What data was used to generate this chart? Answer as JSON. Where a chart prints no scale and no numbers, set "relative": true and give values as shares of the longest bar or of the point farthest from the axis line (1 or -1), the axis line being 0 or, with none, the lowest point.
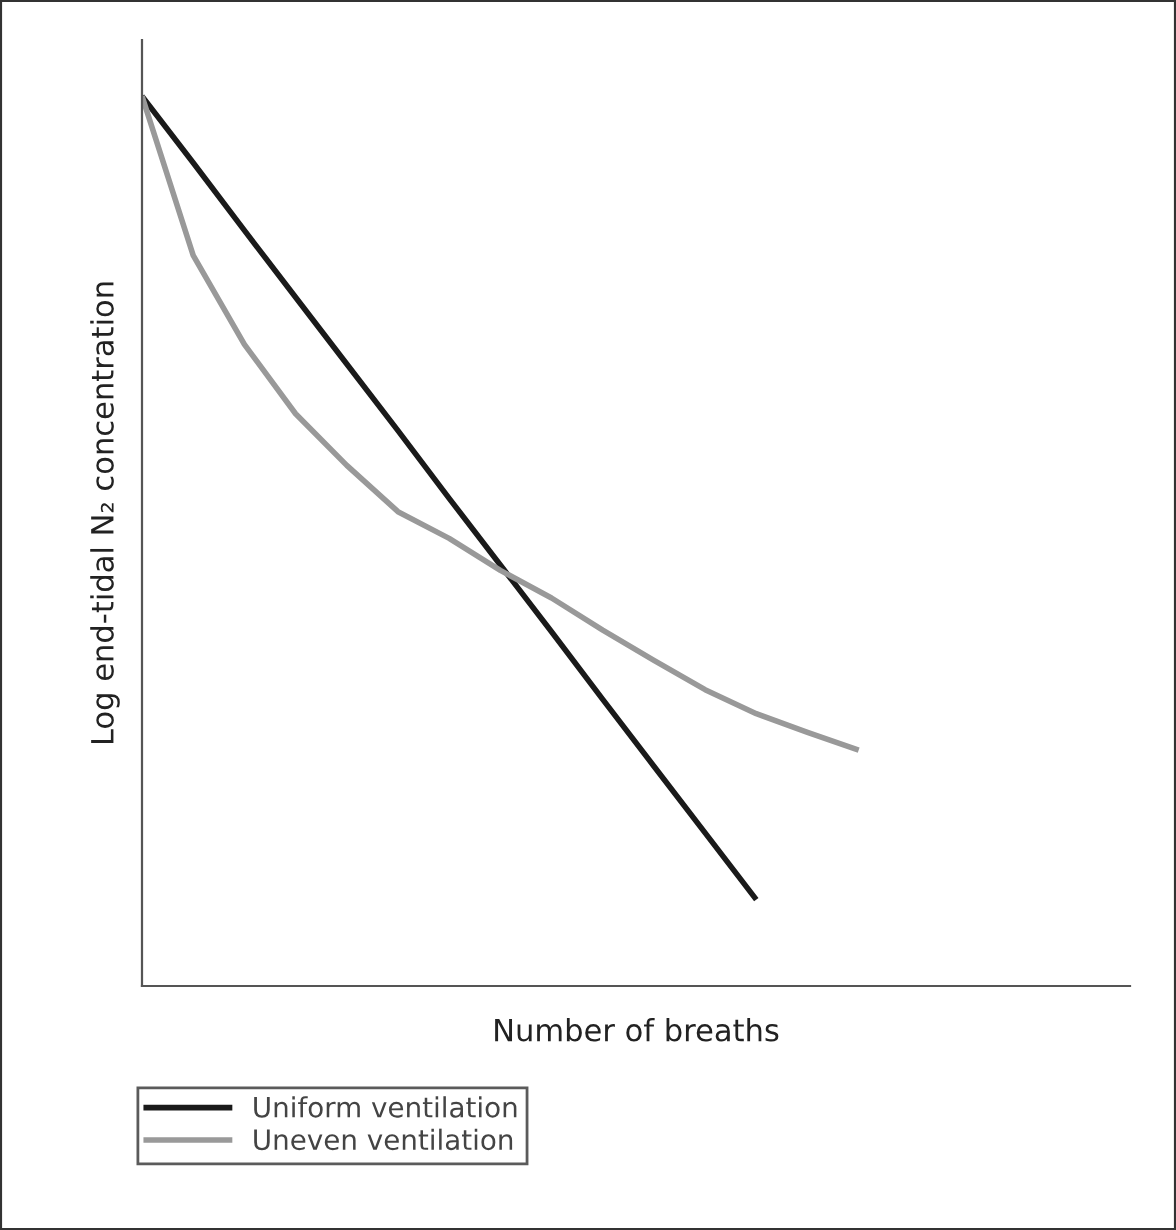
{
  "chart_data": {
    "type": "line",
    "relative": true,
    "xlabel": "Number of breaths",
    "ylabel": "Log end-tidal N₂ concentration",
    "categories": [
      null,
      null,
      null,
      null,
      null,
      null,
      null,
      null,
      null,
      null,
      null,
      null,
      null,
      null,
      null,
      null,
      null,
      null,
      null,
      null
    ],
    "series": [
      {
        "name": "Uniform ventilation",
        "color": "#1a1a1a",
        "values": [
          1.0,
          0.925,
          0.849,
          0.774,
          0.699,
          0.624,
          0.548,
          0.473,
          0.398,
          0.322,
          0.247,
          0.172,
          0.097,
          null,
          null,
          null,
          null,
          null,
          null,
          null
        ]
      },
      {
        "name": "Uneven ventilation",
        "color": "#999999",
        "values": [
          1.0,
          0.821,
          0.721,
          0.643,
          0.585,
          0.533,
          0.503,
          0.467,
          0.436,
          0.4,
          0.366,
          0.333,
          0.306,
          0.285,
          0.265,
          null,
          null,
          null,
          null,
          null
        ]
      }
    ],
    "legend": "bottom left",
    "grid": false,
    "marker": "none",
    "line_style": "solid"
  }
}
